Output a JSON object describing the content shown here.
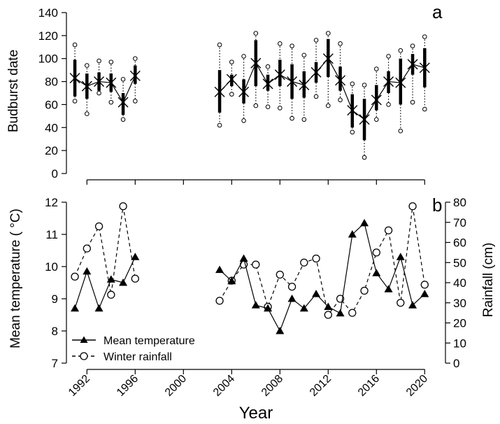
{
  "chart_data": [
    {
      "panel_label": "a",
      "type": "boxplot",
      "ylabel": "Budburst date",
      "ylim": [
        0,
        140
      ],
      "yticks": [
        0,
        20,
        40,
        60,
        80,
        100,
        120,
        140
      ],
      "xlim": [
        1990.3,
        2021.2
      ],
      "xticks": [
        1992,
        1996,
        2000,
        2004,
        2008,
        2012,
        2016,
        2020
      ],
      "xticklabels": [
        "1992",
        "1996",
        "2000",
        "2004",
        "2008",
        "2012",
        "2016",
        "2020"
      ],
      "segments": [
        [
          1991,
          1996
        ],
        [
          2003,
          2020
        ]
      ],
      "series": [
        {
          "name": "",
          "x": [
            1991,
            1992,
            1993,
            1994,
            1995,
            1996,
            2003,
            2004,
            2005,
            2006,
            2007,
            2008,
            2009,
            2010,
            2011,
            2012,
            2013,
            2014,
            2015,
            2016,
            2017,
            2018,
            2019,
            2020
          ],
          "mean": [
            83,
            76,
            80,
            79,
            62,
            85,
            71,
            82,
            71,
            96,
            78,
            86,
            80,
            77,
            88,
            100,
            81,
            55,
            47,
            64,
            80,
            79,
            95,
            92
          ],
          "q1": [
            67,
            65,
            72,
            71,
            51,
            78,
            53,
            76,
            61,
            76,
            72,
            76,
            65,
            66,
            79,
            84,
            72,
            40,
            29,
            55,
            70,
            60,
            86,
            75
          ],
          "q3": [
            99,
            87,
            88,
            87,
            70,
            94,
            90,
            86,
            82,
            116,
            86,
            99,
            95,
            89,
            97,
            117,
            93,
            69,
            65,
            77,
            89,
            100,
            104,
            109
          ],
          "min": [
            63,
            52,
            70,
            62,
            47,
            63,
            42,
            69,
            46,
            59,
            58,
            57,
            48,
            47,
            67,
            59,
            64,
            36,
            14,
            47,
            60,
            37,
            62,
            56
          ],
          "max": [
            112,
            94,
            98,
            97,
            82,
            100,
            112,
            97,
            102,
            122,
            93,
            113,
            111,
            103,
            116,
            122,
            113,
            78,
            77,
            91,
            102,
            107,
            111,
            119
          ]
        }
      ]
    },
    {
      "panel_label": "b",
      "type": "line",
      "xlabel": "Year",
      "ylabel": "Mean temperature ( °C)",
      "y2label": "Rainfall (cm)",
      "ylim": [
        7,
        12
      ],
      "yticks": [
        "7",
        "8",
        "9",
        "10",
        "11",
        "12"
      ],
      "y2lim": [
        0,
        80
      ],
      "y2ticks": [
        "0",
        "10",
        "20",
        "30",
        "40",
        "50",
        "60",
        "70",
        "80"
      ],
      "legend_position": "bottom-left",
      "series": [
        {
          "name": "Mean temperature",
          "axis": "left",
          "line_style": "solid",
          "marker": "filled-triangle",
          "segments": [
            {
              "x": [
                1991,
                1992,
                1993,
                1994,
                1995,
                1996
              ],
              "y": [
                8.7,
                9.85,
                8.7,
                9.6,
                9.5,
                10.3
              ]
            },
            {
              "x": [
                2003,
                2004,
                2005,
                2006,
                2007,
                2008,
                2009,
                2010,
                2011,
                2012,
                2013,
                2014,
                2015,
                2016,
                2017,
                2018,
                2019,
                2020
              ],
              "y": [
                9.9,
                9.55,
                10.25,
                8.8,
                8.7,
                8.0,
                9.0,
                8.7,
                9.15,
                8.75,
                8.55,
                11.0,
                11.35,
                9.8,
                9.3,
                10.3,
                8.8,
                9.15
              ]
            }
          ]
        },
        {
          "name": "Winter rainfall",
          "axis": "right",
          "line_style": "dashed",
          "marker": "open-circle",
          "segments": [
            {
              "x": [
                1991,
                1992,
                1993,
                1994,
                1995,
                1996
              ],
              "y": [
                43,
                57,
                68,
                34,
                78,
                42
              ]
            },
            {
              "x": [
                2003,
                2004,
                2005,
                2006,
                2007,
                2008,
                2009,
                2010,
                2011,
                2012,
                2013,
                2014,
                2015,
                2016,
                2017,
                2018,
                2019,
                2020
              ],
              "y": [
                31,
                41,
                49,
                49,
                28,
                44,
                38,
                50,
                52,
                24,
                32,
                25,
                36,
                55,
                66,
                30,
                78,
                39
              ]
            }
          ]
        }
      ]
    }
  ]
}
